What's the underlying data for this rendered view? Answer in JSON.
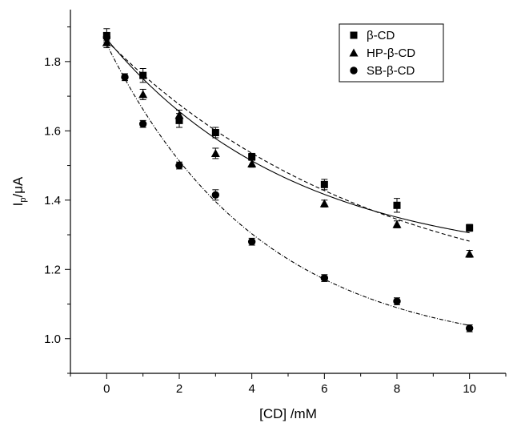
{
  "chart_data": {
    "type": "scatter",
    "xlabel": "[CD] /mM",
    "ylabel_main": "I",
    "ylabel_sub": "p",
    "ylabel_rest": "/μA",
    "xlim": [
      -1,
      11
    ],
    "ylim": [
      0.9,
      1.95
    ],
    "xticks": [
      0,
      2,
      4,
      6,
      8,
      10
    ],
    "yticks": [
      1.0,
      1.2,
      1.4,
      1.6,
      1.8
    ],
    "ytick_labels": [
      "1.0",
      "1.2",
      "1.4",
      "1.6",
      "1.8"
    ],
    "legend_position": "top-right",
    "series": [
      {
        "name": "β-CD",
        "marker": "square",
        "line": "solid",
        "x": [
          0,
          1,
          2,
          3,
          4,
          6,
          8,
          10
        ],
        "y": [
          1.875,
          1.76,
          1.63,
          1.595,
          1.525,
          1.445,
          1.385,
          1.32
        ],
        "err": [
          0.02,
          0.02,
          0.02,
          0.015,
          0.01,
          0.015,
          0.02,
          0.01
        ],
        "fit": {
          "y0": 1.21,
          "a": 0.655,
          "t": 5.2
        }
      },
      {
        "name": "HP-β-CD",
        "marker": "triangle",
        "line": "dashed",
        "x": [
          0,
          1,
          2,
          3,
          4,
          6,
          8,
          10
        ],
        "y": [
          1.855,
          1.705,
          1.645,
          1.535,
          1.505,
          1.39,
          1.33,
          1.245
        ],
        "err": [
          0.015,
          0.015,
          0.015,
          0.015,
          0.01,
          0.01,
          0.01,
          0.01
        ],
        "fit": {
          "y0": 1.074,
          "a": 0.786,
          "t": 7.51
        }
      },
      {
        "name": "SB-β-CD",
        "marker": "circle",
        "line": "dotted",
        "x": [
          0,
          0.5,
          1,
          2,
          3,
          4,
          6,
          8,
          10
        ],
        "y": [
          1.87,
          1.755,
          1.62,
          1.5,
          1.415,
          1.28,
          1.175,
          1.108,
          1.03
        ],
        "err": [
          0.01,
          0.01,
          0.01,
          0.01,
          0.015,
          0.01,
          0.01,
          0.01,
          0.01
        ],
        "fit": {
          "y0": 0.953,
          "a": 0.897,
          "t": 4.25
        }
      }
    ]
  }
}
